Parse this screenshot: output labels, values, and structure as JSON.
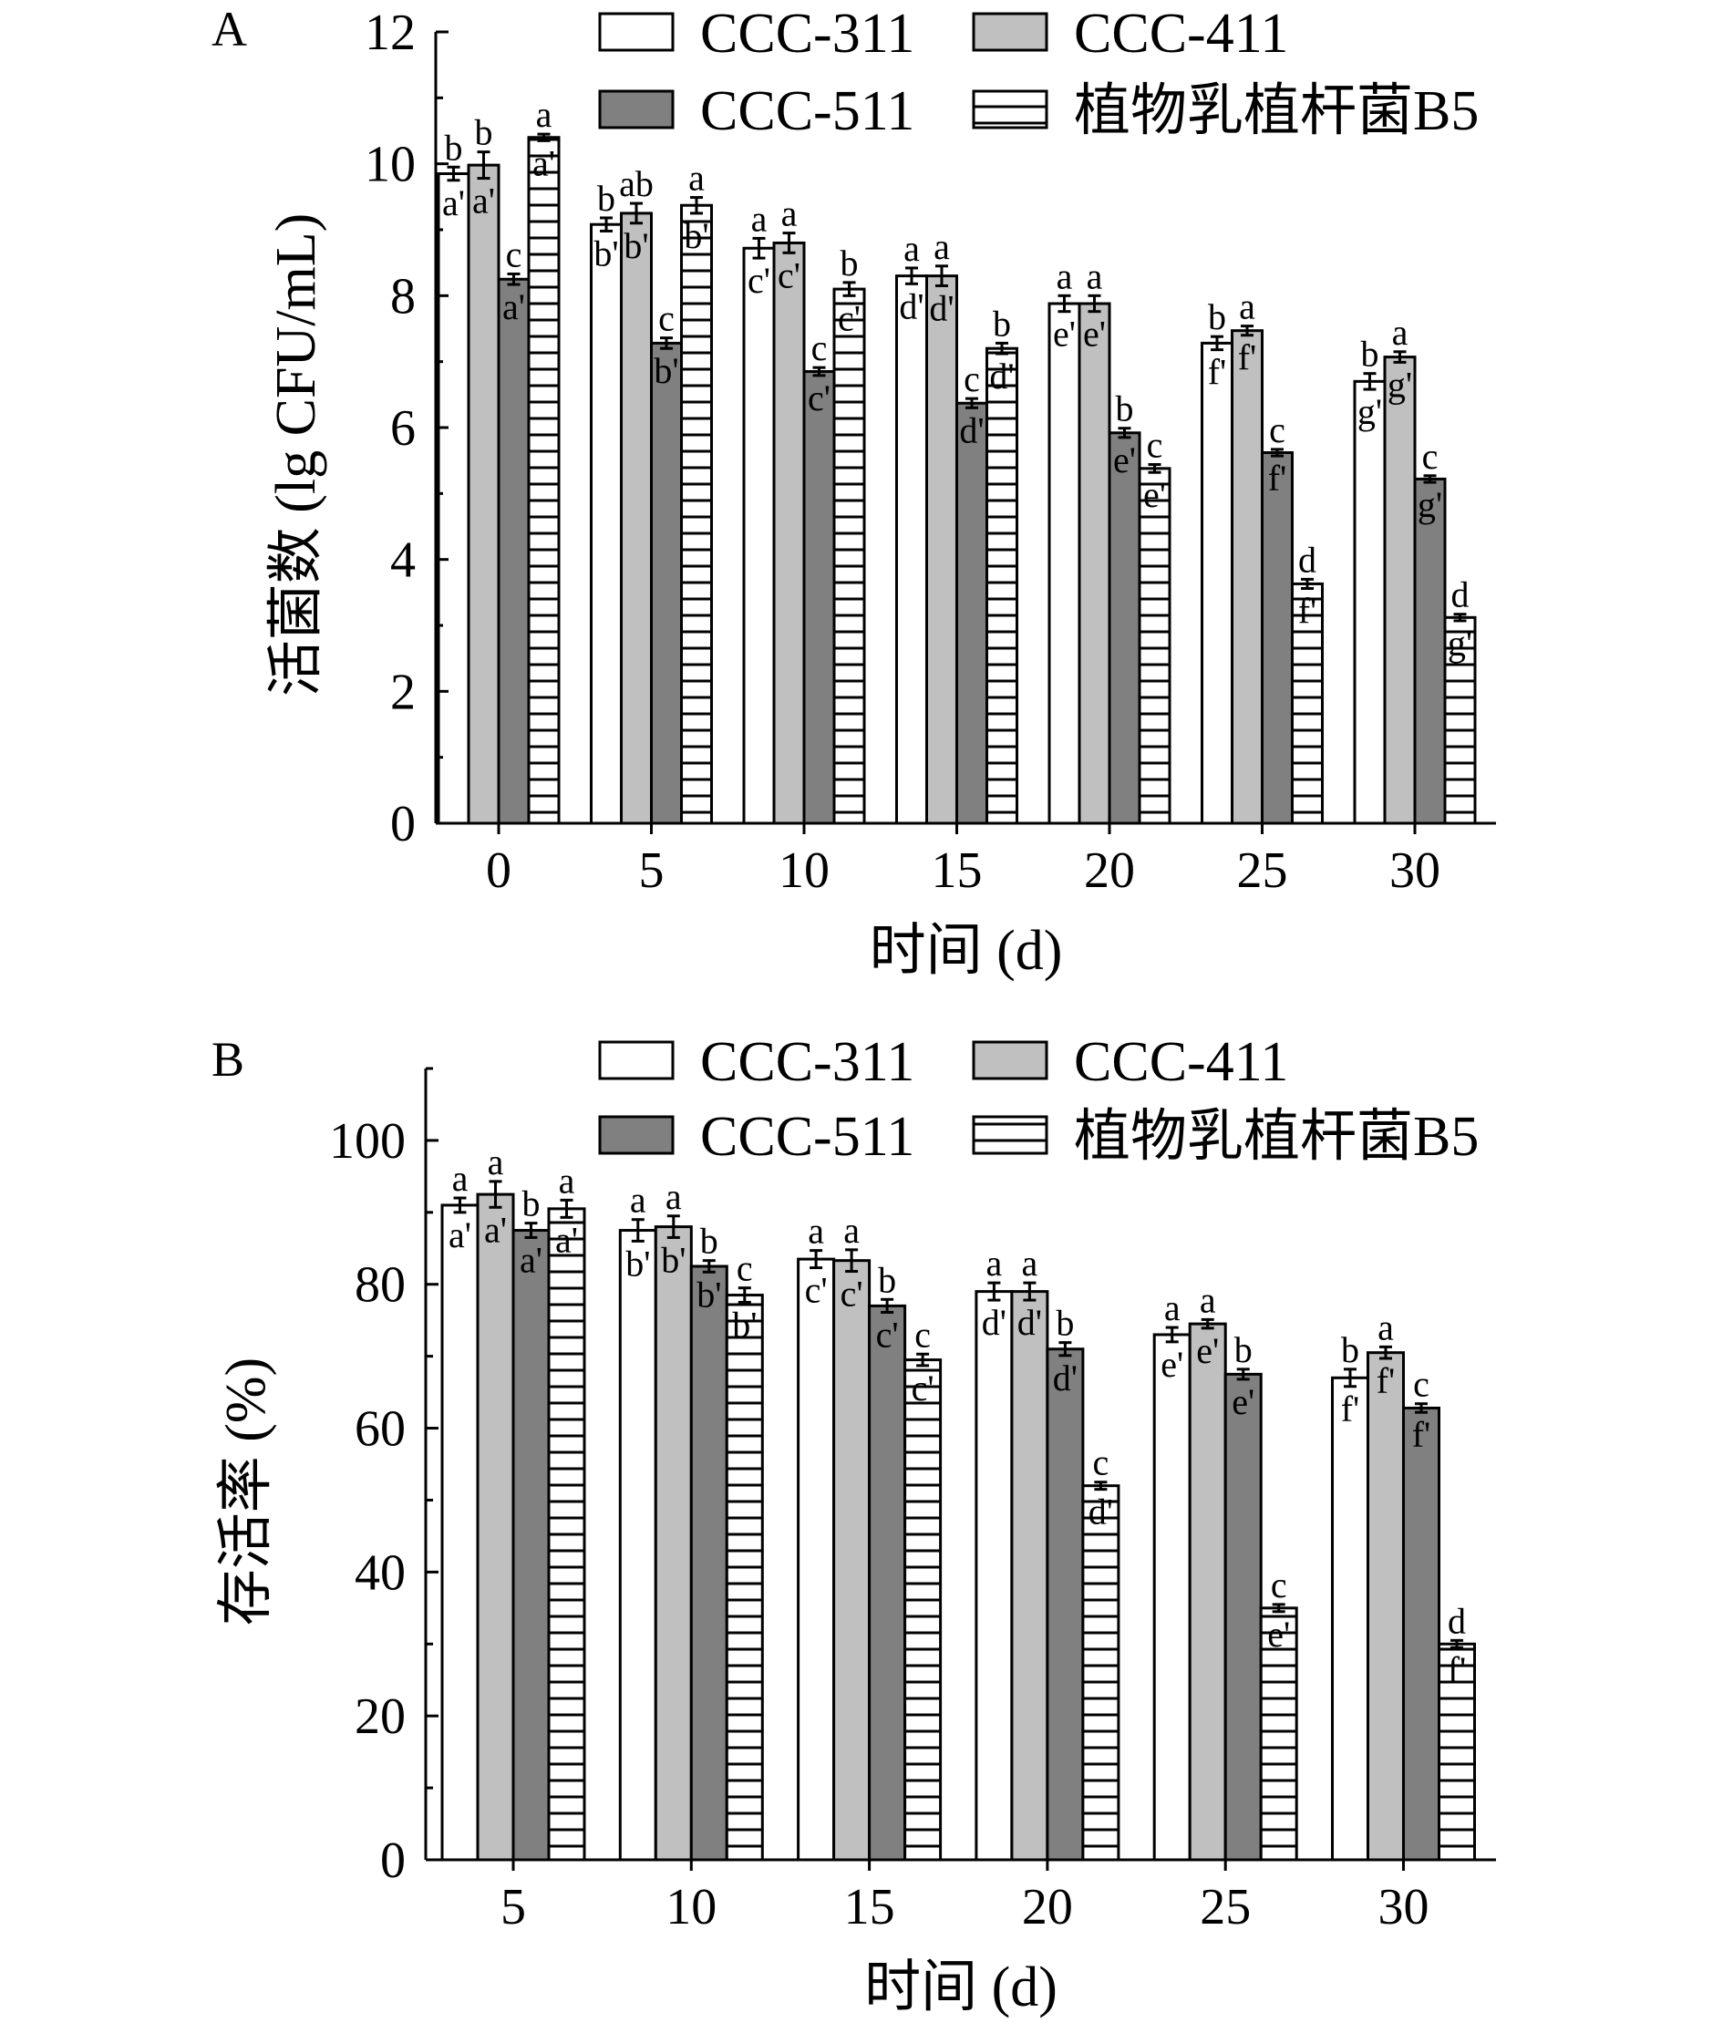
{
  "legend": {
    "series": [
      {
        "name": "CCC-311",
        "fill": "#ffffff",
        "pattern": "solid"
      },
      {
        "name": "CCC-411",
        "fill": "#c0c0c0",
        "pattern": "solid"
      },
      {
        "name": "CCC-511",
        "fill": "#808080",
        "pattern": "solid"
      },
      {
        "name": "植物乳植杆菌B5",
        "fill": "#ffffff",
        "pattern": "horizontal-lines"
      }
    ]
  },
  "chart_data": [
    {
      "panel": "A",
      "type": "bar",
      "xlabel": "时间 (d)",
      "ylabel": "活菌数 (lg CFU/mL)",
      "ylim": [
        0,
        12
      ],
      "yticks": [
        0,
        2,
        4,
        6,
        8,
        10,
        12
      ],
      "categories": [
        "0",
        "5",
        "10",
        "15",
        "20",
        "25",
        "30"
      ],
      "legend_position": "top",
      "series": [
        {
          "name": "CCC-311",
          "values": [
            9.85,
            9.08,
            8.72,
            8.3,
            7.88,
            7.28,
            6.7
          ],
          "errors": [
            0.1,
            0.1,
            0.15,
            0.12,
            0.12,
            0.1,
            0.12
          ],
          "letters": [
            "b",
            "b",
            "a",
            "a",
            "a",
            "b",
            "b"
          ],
          "primes": [
            "a'",
            "b'",
            "c'",
            "d'",
            "e'",
            "f'",
            "g'"
          ]
        },
        {
          "name": "CCC-411",
          "values": [
            9.98,
            9.25,
            8.8,
            8.3,
            7.88,
            7.47,
            7.07
          ],
          "errors": [
            0.2,
            0.15,
            0.15,
            0.15,
            0.12,
            0.07,
            0.08
          ],
          "letters": [
            "b",
            "ab",
            "a",
            "a",
            "a",
            "a",
            "a"
          ],
          "primes": [
            "a'",
            "b'",
            "c'",
            "d'",
            "e'",
            "f'",
            "g'"
          ]
        },
        {
          "name": "CCC-511",
          "values": [
            8.25,
            7.28,
            6.85,
            6.37,
            5.92,
            5.62,
            5.22
          ],
          "errors": [
            0.08,
            0.08,
            0.06,
            0.07,
            0.07,
            0.05,
            0.05
          ],
          "letters": [
            "c",
            "c",
            "c",
            "c",
            "b",
            "c",
            "c"
          ],
          "primes": [
            "a'",
            "b'",
            "c'",
            "d'",
            "e'",
            "f'",
            "g'"
          ]
        },
        {
          "name": "植物乳植杆菌B5",
          "values": [
            10.4,
            9.37,
            8.1,
            7.2,
            5.38,
            3.63,
            3.12
          ],
          "errors": [
            0.05,
            0.12,
            0.1,
            0.08,
            0.06,
            0.07,
            0.05
          ],
          "letters": [
            "a",
            "a",
            "b",
            "b",
            "c",
            "d",
            "d"
          ],
          "primes": [
            "a'",
            "b'",
            "c'",
            "d'",
            "e'",
            "f'",
            "g'"
          ]
        }
      ]
    },
    {
      "panel": "B",
      "type": "bar",
      "xlabel": "时间 (d)",
      "ylabel": "存活率 (%)",
      "ylim": [
        0,
        110
      ],
      "yticks": [
        0,
        20,
        40,
        60,
        80,
        100
      ],
      "categories": [
        "5",
        "10",
        "15",
        "20",
        "25",
        "30"
      ],
      "legend_position": "top",
      "series": [
        {
          "name": "CCC-311",
          "values": [
            91,
            87.5,
            83.5,
            79,
            73,
            67
          ],
          "errors": [
            1,
            1.5,
            1.2,
            1.2,
            1,
            1.2
          ],
          "letters": [
            "a",
            "a",
            "a",
            "a",
            "a",
            "b"
          ],
          "primes": [
            "a'",
            "b'",
            "c'",
            "d'",
            "e'",
            "f'"
          ]
        },
        {
          "name": "CCC-411",
          "values": [
            92.5,
            88,
            83.3,
            79,
            74.5,
            70.5
          ],
          "errors": [
            1.8,
            1.5,
            1.5,
            1.2,
            0.6,
            0.8
          ],
          "letters": [
            "a",
            "a",
            "a",
            "a",
            "a",
            "a"
          ],
          "primes": [
            "a'",
            "b'",
            "c'",
            "d'",
            "e'",
            "f'"
          ]
        },
        {
          "name": "CCC-511",
          "values": [
            87.5,
            82.5,
            77,
            71,
            67.5,
            62.8
          ],
          "errors": [
            1,
            0.8,
            0.9,
            0.9,
            0.7,
            0.6
          ],
          "letters": [
            "b",
            "b",
            "b",
            "b",
            "b",
            "c"
          ],
          "primes": [
            "a'",
            "b'",
            "c'",
            "d'",
            "e'",
            "f'"
          ]
        },
        {
          "name": "植物乳植杆菌B5",
          "values": [
            90.5,
            78.5,
            69.5,
            52,
            35,
            30
          ],
          "errors": [
            1.2,
            1,
            0.8,
            0.5,
            0.5,
            0.5
          ],
          "letters": [
            "a",
            "c",
            "c",
            "c",
            "c",
            "d"
          ],
          "primes": [
            "a'",
            "b'",
            "c'",
            "d'",
            "e'",
            "f'"
          ]
        }
      ]
    }
  ]
}
